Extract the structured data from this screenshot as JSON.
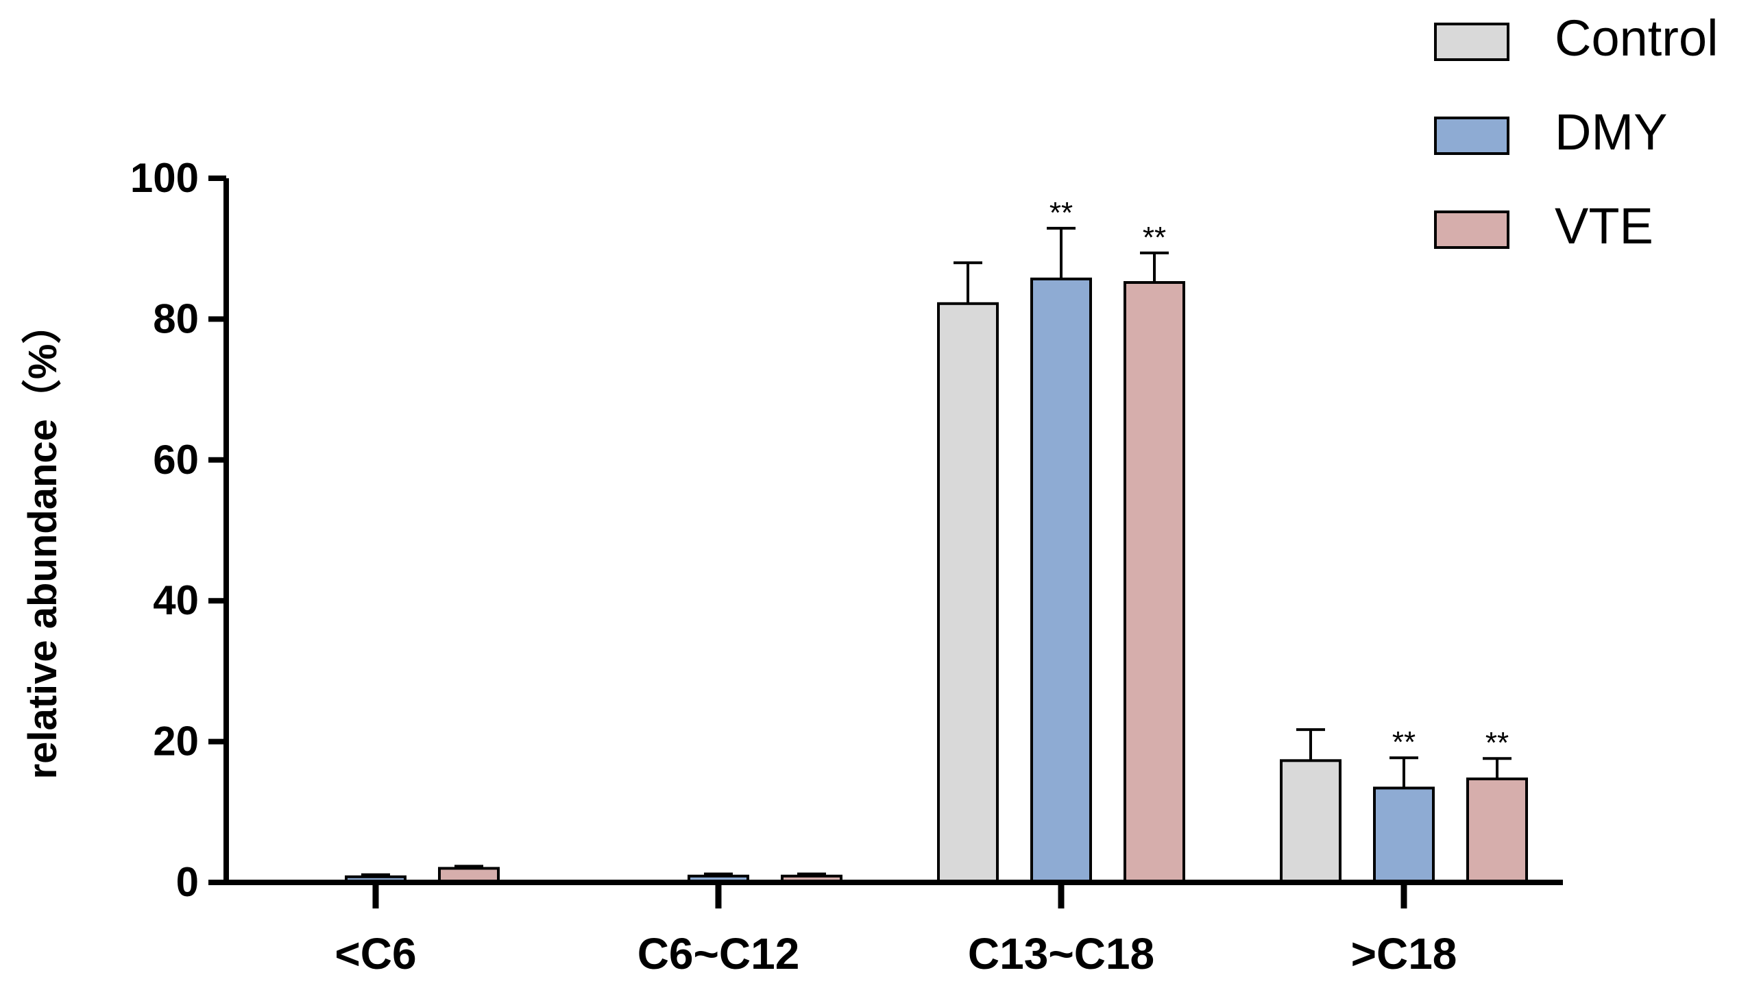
{
  "chart_data": {
    "type": "bar",
    "title": "",
    "xlabel": "",
    "ylabel": "relative abundance（%）",
    "ylim": [
      0,
      100
    ],
    "yticks": [
      "0",
      "20",
      "40",
      "60",
      "80",
      "100"
    ],
    "categories": [
      "<C6",
      "C6~C12",
      "C13~C18",
      ">C18"
    ],
    "series": [
      {
        "name": "Control",
        "color": "#d9d9d9",
        "values": [
          0,
          0,
          82.2,
          17.3
        ],
        "errors": [
          0,
          0,
          5.8,
          4.4
        ],
        "significance": [
          "",
          "",
          "",
          ""
        ]
      },
      {
        "name": "DMY",
        "color": "#8eabd3",
        "values": [
          0.8,
          0.9,
          85.7,
          13.4
        ],
        "errors": [
          0.3,
          0.3,
          7.2,
          4.3
        ],
        "significance": [
          "",
          "",
          "**",
          "**"
        ]
      },
      {
        "name": "VTE",
        "color": "#d6aeac",
        "values": [
          2.0,
          0.9,
          85.2,
          14.7
        ],
        "errors": [
          0.3,
          0.3,
          4.2,
          2.9
        ],
        "significance": [
          "",
          "",
          "**",
          "**"
        ]
      }
    ],
    "legend_position": "top-right",
    "grid": false
  }
}
